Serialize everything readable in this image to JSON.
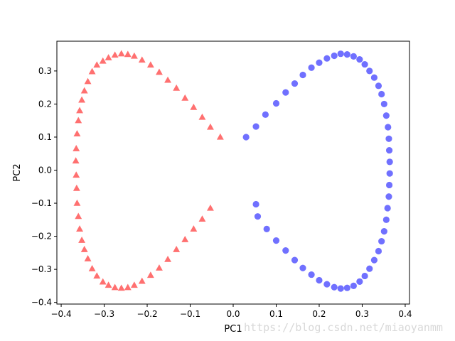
{
  "chart_data": {
    "type": "scatter",
    "title": "",
    "xlabel": "PC1",
    "ylabel": "PC2",
    "xlim": [
      -0.41,
      0.41
    ],
    "ylim": [
      -0.405,
      0.39
    ],
    "xticks": [
      -0.4,
      -0.3,
      -0.2,
      -0.1,
      0.0,
      0.1,
      0.2,
      0.3,
      0.4
    ],
    "xtick_labels": [
      "−0.4",
      "−0.3",
      "−0.2",
      "−0.1",
      "0.0",
      "0.1",
      "0.2",
      "0.3",
      "0.4"
    ],
    "yticks": [
      -0.4,
      -0.3,
      -0.2,
      -0.1,
      0.0,
      0.1,
      0.2,
      0.3
    ],
    "ytick_labels": [
      "−0.4",
      "−0.3",
      "−0.2",
      "−0.1",
      "0.0",
      "0.1",
      "0.2",
      "0.3"
    ],
    "grid": false,
    "legend": "none",
    "series": [
      {
        "marker": "triangle",
        "color": "#ff4040",
        "points": [
          [
            -0.03,
            0.1
          ],
          [
            -0.053,
            0.13
          ],
          [
            -0.072,
            0.16
          ],
          [
            -0.092,
            0.19
          ],
          [
            -0.112,
            0.218
          ],
          [
            -0.132,
            0.248
          ],
          [
            -0.152,
            0.272
          ],
          [
            -0.172,
            0.296
          ],
          [
            -0.192,
            0.318
          ],
          [
            -0.212,
            0.333
          ],
          [
            -0.23,
            0.345
          ],
          [
            -0.245,
            0.35
          ],
          [
            -0.26,
            0.352
          ],
          [
            -0.275,
            0.348
          ],
          [
            -0.29,
            0.34
          ],
          [
            -0.303,
            0.33
          ],
          [
            -0.317,
            0.318
          ],
          [
            -0.328,
            0.298
          ],
          [
            -0.338,
            0.268
          ],
          [
            -0.346,
            0.24
          ],
          [
            -0.352,
            0.212
          ],
          [
            -0.357,
            0.18
          ],
          [
            -0.36,
            0.15
          ],
          [
            -0.363,
            0.11
          ],
          [
            -0.365,
            0.065
          ],
          [
            -0.366,
            0.028
          ],
          [
            -0.365,
            -0.015
          ],
          [
            -0.364,
            -0.055
          ],
          [
            -0.363,
            -0.1
          ],
          [
            -0.36,
            -0.14
          ],
          [
            -0.357,
            -0.178
          ],
          [
            -0.352,
            -0.212
          ],
          [
            -0.346,
            -0.24
          ],
          [
            -0.338,
            -0.268
          ],
          [
            -0.328,
            -0.298
          ],
          [
            -0.317,
            -0.32
          ],
          [
            -0.303,
            -0.338
          ],
          [
            -0.29,
            -0.348
          ],
          [
            -0.275,
            -0.355
          ],
          [
            -0.26,
            -0.357
          ],
          [
            -0.245,
            -0.355
          ],
          [
            -0.23,
            -0.348
          ],
          [
            -0.212,
            -0.336
          ],
          [
            -0.192,
            -0.318
          ],
          [
            -0.172,
            -0.296
          ],
          [
            -0.152,
            -0.27
          ],
          [
            -0.132,
            -0.24
          ],
          [
            -0.112,
            -0.21
          ],
          [
            -0.092,
            -0.178
          ],
          [
            -0.072,
            -0.148
          ],
          [
            -0.053,
            -0.115
          ]
        ]
      },
      {
        "marker": "circle",
        "color": "#4040ff",
        "points": [
          [
            0.03,
            0.1
          ],
          [
            0.053,
            0.132
          ],
          [
            0.075,
            0.168
          ],
          [
            0.1,
            0.202
          ],
          [
            0.122,
            0.235
          ],
          [
            0.143,
            0.262
          ],
          [
            0.162,
            0.288
          ],
          [
            0.182,
            0.31
          ],
          [
            0.2,
            0.325
          ],
          [
            0.218,
            0.338
          ],
          [
            0.235,
            0.346
          ],
          [
            0.25,
            0.352
          ],
          [
            0.265,
            0.35
          ],
          [
            0.28,
            0.344
          ],
          [
            0.294,
            0.335
          ],
          [
            0.306,
            0.32
          ],
          [
            0.317,
            0.3
          ],
          [
            0.328,
            0.28
          ],
          [
            0.338,
            0.255
          ],
          [
            0.345,
            0.23
          ],
          [
            0.351,
            0.2
          ],
          [
            0.356,
            0.165
          ],
          [
            0.36,
            0.13
          ],
          [
            0.362,
            0.095
          ],
          [
            0.363,
            0.06
          ],
          [
            0.364,
            0.025
          ],
          [
            0.364,
            -0.01
          ],
          [
            0.363,
            -0.045
          ],
          [
            0.362,
            -0.08
          ],
          [
            0.359,
            -0.115
          ],
          [
            0.356,
            -0.15
          ],
          [
            0.351,
            -0.185
          ],
          [
            0.345,
            -0.215
          ],
          [
            0.338,
            -0.245
          ],
          [
            0.328,
            -0.272
          ],
          [
            0.317,
            -0.298
          ],
          [
            0.306,
            -0.32
          ],
          [
            0.294,
            -0.337
          ],
          [
            0.28,
            -0.35
          ],
          [
            0.265,
            -0.356
          ],
          [
            0.25,
            -0.358
          ],
          [
            0.235,
            -0.354
          ],
          [
            0.218,
            -0.345
          ],
          [
            0.2,
            -0.333
          ],
          [
            0.182,
            -0.316
          ],
          [
            0.162,
            -0.296
          ],
          [
            0.143,
            -0.272
          ],
          [
            0.122,
            -0.243
          ],
          [
            0.1,
            -0.213
          ],
          [
            0.078,
            -0.178
          ],
          [
            0.057,
            -0.14
          ],
          [
            0.053,
            -0.103
          ]
        ]
      }
    ]
  },
  "watermark": "https://blog.csdn.net/miaoyanmm"
}
